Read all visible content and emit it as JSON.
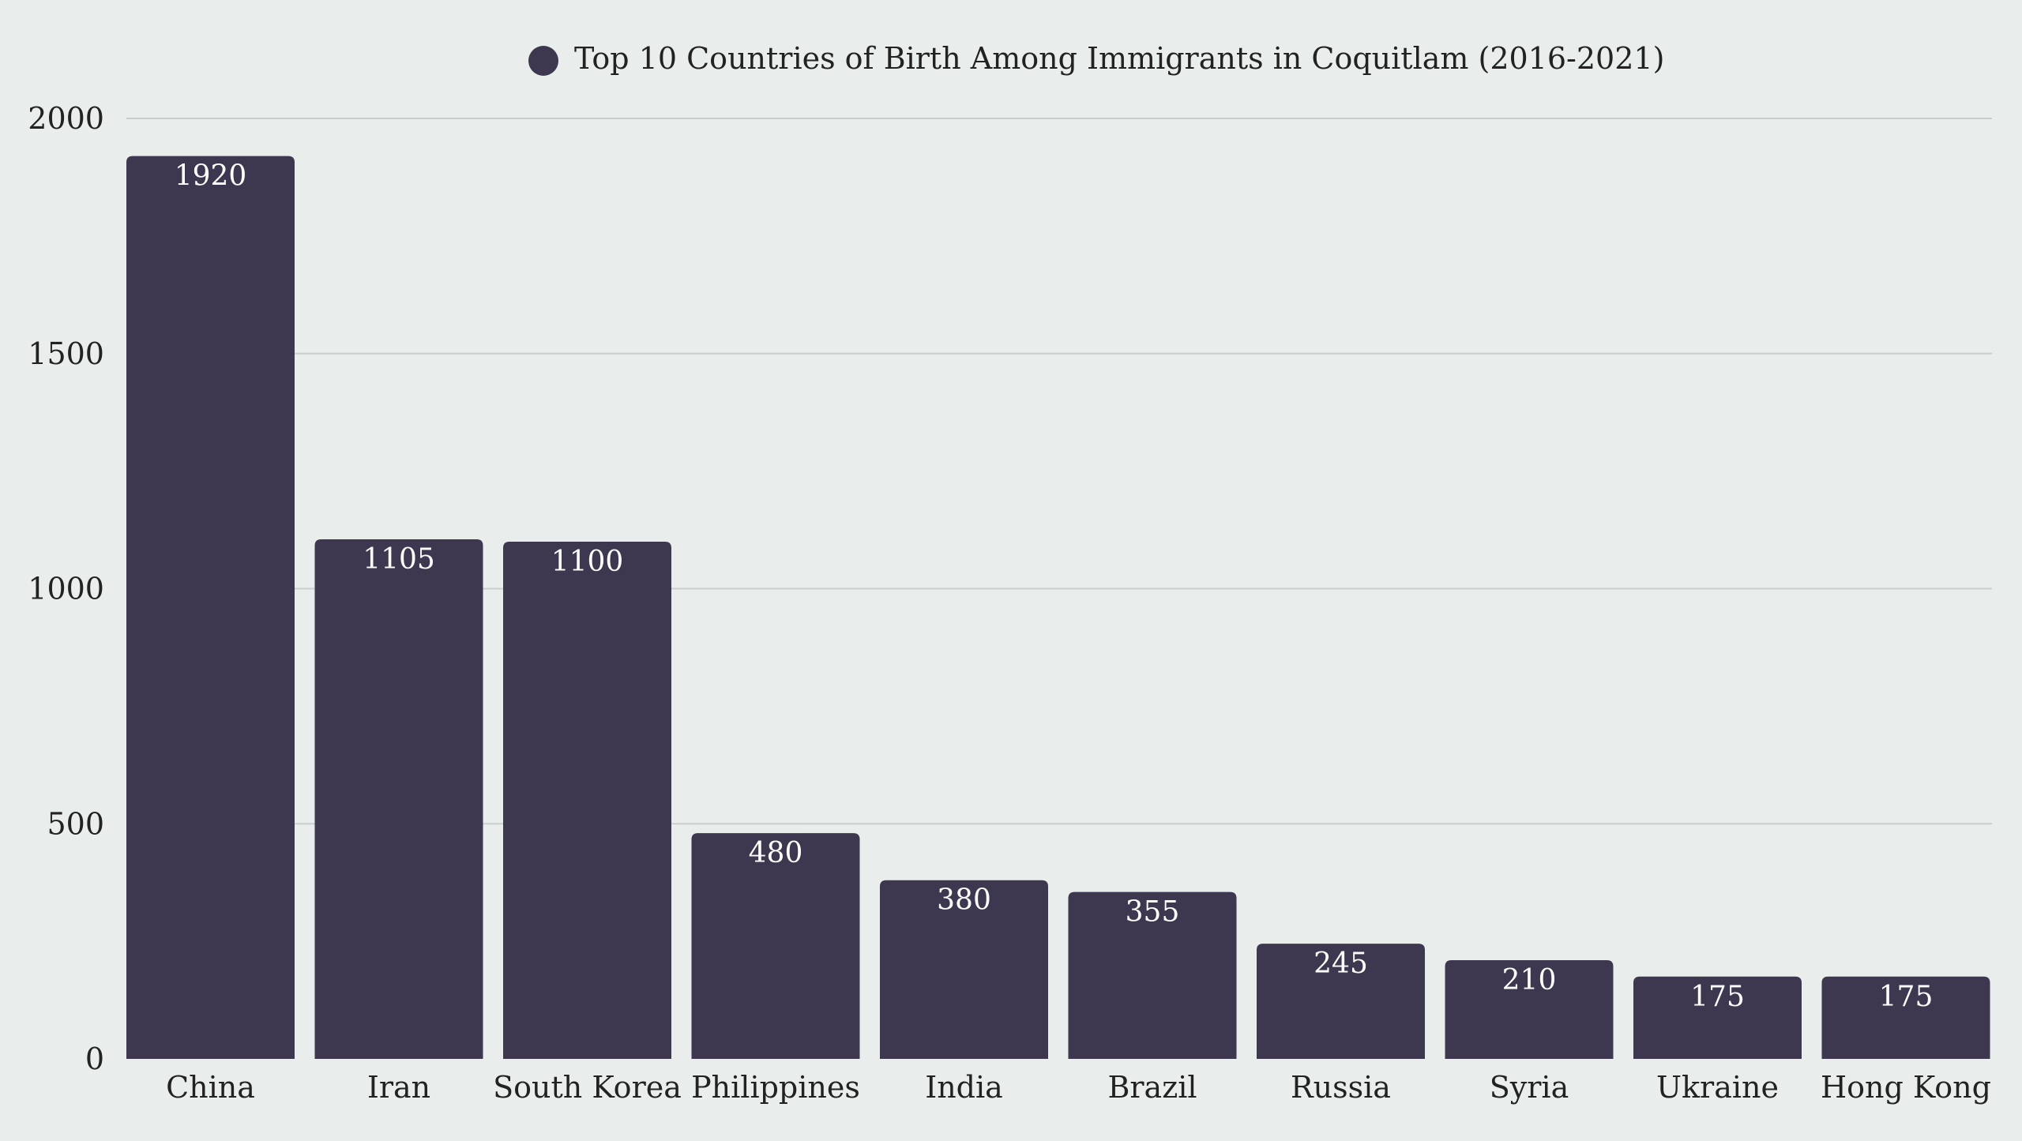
{
  "chart_data": {
    "type": "bar",
    "title": "Top 10 Countries of Birth Among Immigrants in Coquitlam (2016-2021)",
    "legend": [
      {
        "name": "Top 10 Countries of Birth Among Immigrants in Coquitlam (2016-2021)",
        "color": "#3d384f"
      }
    ],
    "legend_position": "top-center",
    "categories": [
      "China",
      "Iran",
      "South Korea",
      "Philippines",
      "India",
      "Brazil",
      "Russia",
      "Syria",
      "Ukraine",
      "Hong Kong"
    ],
    "values": [
      1920,
      1105,
      1100,
      480,
      380,
      355,
      245,
      210,
      175,
      175
    ],
    "value_labels": [
      "1920",
      "1105",
      "1100",
      "480",
      "380",
      "355",
      "245",
      "210",
      "175",
      "175"
    ],
    "yticks": [
      0,
      500,
      1000,
      1500,
      2000
    ],
    "ytick_labels": [
      "0",
      "500",
      "1000",
      "1500",
      "2000"
    ],
    "ylim": [
      0,
      2000
    ],
    "xlabel": "",
    "ylabel": "",
    "grid": true,
    "bar_color": "#3d384f",
    "background_color": "#e9eeec"
  }
}
